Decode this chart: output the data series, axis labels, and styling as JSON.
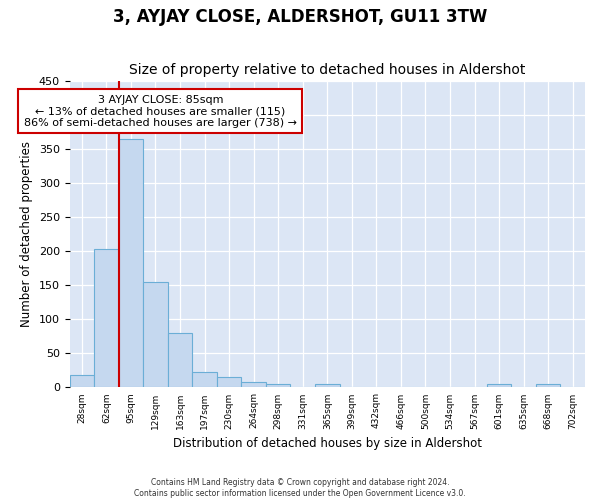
{
  "title": "3, AYJAY CLOSE, ALDERSHOT, GU11 3TW",
  "subtitle": "Size of property relative to detached houses in Aldershot",
  "xlabel": "Distribution of detached houses by size in Aldershot",
  "ylabel": "Number of detached properties",
  "bar_values": [
    18,
    203,
    365,
    155,
    80,
    22,
    15,
    8,
    5,
    0,
    5,
    0,
    0,
    0,
    0,
    0,
    0,
    5,
    0,
    5,
    0
  ],
  "xlabels": [
    "28sqm",
    "62sqm",
    "95sqm",
    "129sqm",
    "163sqm",
    "197sqm",
    "230sqm",
    "264sqm",
    "298sqm",
    "331sqm",
    "365sqm",
    "399sqm",
    "432sqm",
    "466sqm",
    "500sqm",
    "534sqm",
    "567sqm",
    "601sqm",
    "635sqm",
    "668sqm",
    "702sqm"
  ],
  "bar_color": "#c5d8ef",
  "bar_edge_color": "#6baed6",
  "vline_color": "#cc0000",
  "annotation_text": "3 AYJAY CLOSE: 85sqm\n← 13% of detached houses are smaller (115)\n86% of semi-detached houses are larger (738) →",
  "annotation_box_color": "#ffffff",
  "annotation_box_edge": "#cc0000",
  "ylim": [
    0,
    450
  ],
  "yticks": [
    0,
    50,
    100,
    150,
    200,
    250,
    300,
    350,
    400,
    450
  ],
  "bg_color": "#dce6f5",
  "footer_line1": "Contains HM Land Registry data © Crown copyright and database right 2024.",
  "footer_line2": "Contains public sector information licensed under the Open Government Licence v3.0.",
  "title_fontsize": 12,
  "subtitle_fontsize": 10,
  "axis_label_fontsize": 8.5
}
